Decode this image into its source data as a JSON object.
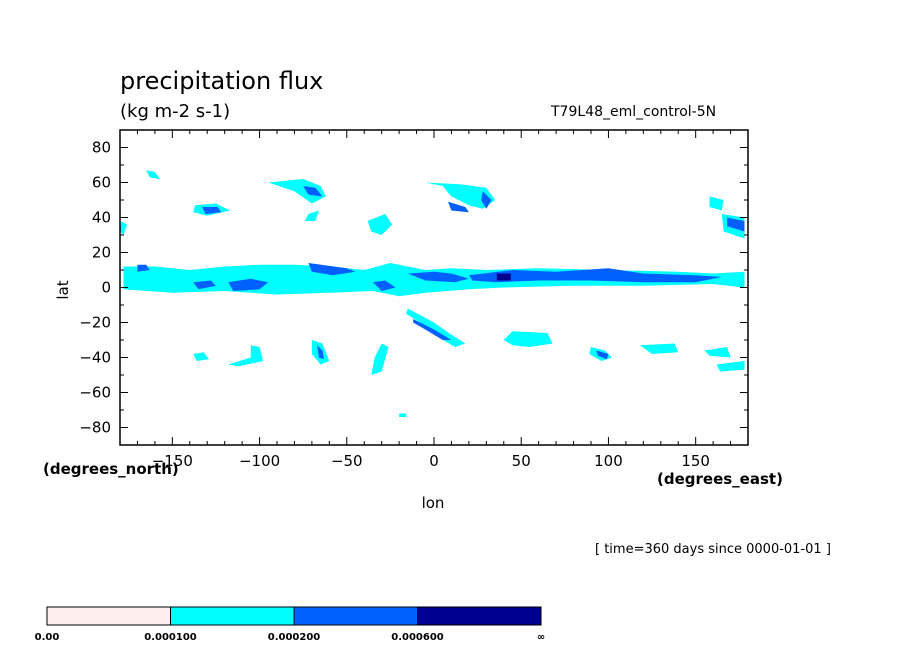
{
  "title": "precipitation flux",
  "units": "(kg m-2 s-1)",
  "run_id": "T79L48_eml_control-5N",
  "time_label": "[ time=360 days since 0000-01-01 ]",
  "chart_data": {
    "type": "contour-fill map",
    "x": {
      "label": "lon",
      "unit_label": "(degrees_east)",
      "range": [
        -180,
        180
      ],
      "ticks": [
        -150,
        -100,
        -50,
        0,
        50,
        100,
        150
      ],
      "tick_labels": [
        "−150",
        "−100",
        "−50",
        "0",
        "50",
        "100",
        "150"
      ]
    },
    "y": {
      "label": "lat",
      "unit_label": "(degrees_north)",
      "range": [
        -90,
        90
      ],
      "ticks": [
        -80,
        -60,
        -40,
        -20,
        0,
        20,
        40,
        60,
        80
      ],
      "tick_labels": [
        "−80",
        "−60",
        "−40",
        "−20",
        "0",
        "20",
        "40",
        "60",
        "80"
      ]
    },
    "levels": {
      "boundaries": [
        "0.00",
        "0.000100",
        "0.000200",
        "0.000600",
        "∞"
      ],
      "colors": [
        "#fff0ee",
        "#00ffff",
        "#0060ff",
        "#000090"
      ]
    },
    "regions": [
      {
        "level": 1,
        "pts": [
          [
            -178,
            12
          ],
          [
            -160,
            12
          ],
          [
            -140,
            10
          ],
          [
            -120,
            12
          ],
          [
            -100,
            13
          ],
          [
            -80,
            13
          ],
          [
            -60,
            12
          ],
          [
            -40,
            10
          ],
          [
            -25,
            14
          ],
          [
            -5,
            10
          ],
          [
            10,
            11
          ],
          [
            30,
            10
          ],
          [
            60,
            11
          ],
          [
            100,
            10
          ],
          [
            140,
            9
          ],
          [
            160,
            8
          ],
          [
            178,
            9
          ],
          [
            178,
            0
          ],
          [
            160,
            2
          ],
          [
            120,
            1
          ],
          [
            80,
            1
          ],
          [
            40,
            0
          ],
          [
            20,
            -1
          ],
          [
            -5,
            -3
          ],
          [
            -20,
            -5
          ],
          [
            -35,
            -2
          ],
          [
            -60,
            -3
          ],
          [
            -90,
            -4
          ],
          [
            -120,
            -2
          ],
          [
            -150,
            -3
          ],
          [
            -178,
            -1
          ]
        ]
      },
      {
        "level": 2,
        "pts": [
          [
            -170,
            13
          ],
          [
            -165,
            13
          ],
          [
            -163,
            10
          ],
          [
            -170,
            9
          ]
        ]
      },
      {
        "level": 2,
        "pts": [
          [
            -118,
            3
          ],
          [
            -105,
            5
          ],
          [
            -95,
            3
          ],
          [
            -100,
            -1
          ],
          [
            -115,
            -2
          ]
        ]
      },
      {
        "level": 2,
        "pts": [
          [
            -138,
            3
          ],
          [
            -128,
            4
          ],
          [
            -125,
            1
          ],
          [
            -135,
            -1
          ]
        ]
      },
      {
        "level": 2,
        "pts": [
          [
            -72,
            14
          ],
          [
            -50,
            11
          ],
          [
            -45,
            9
          ],
          [
            -58,
            7
          ],
          [
            -70,
            9
          ]
        ]
      },
      {
        "level": 2,
        "pts": [
          [
            -35,
            3
          ],
          [
            -28,
            4
          ],
          [
            -22,
            0
          ],
          [
            -30,
            -2
          ]
        ]
      },
      {
        "level": 2,
        "pts": [
          [
            -15,
            8
          ],
          [
            0,
            9
          ],
          [
            10,
            8
          ],
          [
            20,
            5
          ],
          [
            12,
            3
          ],
          [
            -5,
            4
          ]
        ]
      },
      {
        "level": 2,
        "pts": [
          [
            20,
            7
          ],
          [
            45,
            10
          ],
          [
            70,
            9
          ],
          [
            100,
            11
          ],
          [
            120,
            8
          ],
          [
            150,
            7
          ],
          [
            165,
            6
          ],
          [
            150,
            3
          ],
          [
            120,
            3
          ],
          [
            90,
            4
          ],
          [
            60,
            4
          ],
          [
            35,
            3
          ],
          [
            22,
            4
          ]
        ]
      },
      {
        "level": 3,
        "pts": [
          [
            36,
            8
          ],
          [
            44,
            8
          ],
          [
            44,
            4
          ],
          [
            36,
            4
          ]
        ]
      },
      {
        "level": 1,
        "pts": [
          [
            -165,
            67
          ],
          [
            -160,
            66
          ],
          [
            -157,
            62
          ],
          [
            -163,
            63
          ]
        ]
      },
      {
        "level": 1,
        "pts": [
          [
            -95,
            60
          ],
          [
            -75,
            62
          ],
          [
            -65,
            58
          ],
          [
            -62,
            52
          ],
          [
            -70,
            48
          ],
          [
            -80,
            55
          ]
        ]
      },
      {
        "level": 2,
        "pts": [
          [
            -75,
            58
          ],
          [
            -68,
            57
          ],
          [
            -64,
            52
          ],
          [
            -72,
            53
          ]
        ]
      },
      {
        "level": 1,
        "pts": [
          [
            -137,
            47
          ],
          [
            -125,
            48
          ],
          [
            -117,
            44
          ],
          [
            -130,
            41
          ],
          [
            -138,
            43
          ]
        ]
      },
      {
        "level": 2,
        "pts": [
          [
            -133,
            46
          ],
          [
            -124,
            46
          ],
          [
            -122,
            43
          ],
          [
            -131,
            42
          ]
        ]
      },
      {
        "level": 1,
        "pts": [
          [
            -72,
            42
          ],
          [
            -66,
            44
          ],
          [
            -68,
            38
          ],
          [
            -74,
            38
          ]
        ]
      },
      {
        "level": 1,
        "pts": [
          [
            -38,
            38
          ],
          [
            -28,
            42
          ],
          [
            -24,
            36
          ],
          [
            -30,
            30
          ],
          [
            -36,
            32
          ]
        ]
      },
      {
        "level": 1,
        "pts": [
          [
            -5,
            60
          ],
          [
            15,
            59
          ],
          [
            30,
            57
          ],
          [
            35,
            50
          ],
          [
            28,
            45
          ],
          [
            20,
            47
          ],
          [
            10,
            52
          ],
          [
            5,
            58
          ]
        ]
      },
      {
        "level": 2,
        "pts": [
          [
            8,
            49
          ],
          [
            18,
            46
          ],
          [
            20,
            43
          ],
          [
            10,
            44
          ]
        ]
      },
      {
        "level": 2,
        "pts": [
          [
            28,
            55
          ],
          [
            33,
            50
          ],
          [
            30,
            45
          ],
          [
            27,
            50
          ]
        ]
      },
      {
        "level": 1,
        "pts": [
          [
            158,
            52
          ],
          [
            166,
            50
          ],
          [
            165,
            44
          ],
          [
            158,
            46
          ]
        ]
      },
      {
        "level": 1,
        "pts": [
          [
            165,
            42
          ],
          [
            178,
            40
          ],
          [
            178,
            28
          ],
          [
            166,
            32
          ]
        ]
      },
      {
        "level": 2,
        "pts": [
          [
            168,
            40
          ],
          [
            178,
            38
          ],
          [
            178,
            32
          ],
          [
            168,
            35
          ]
        ]
      },
      {
        "level": 1,
        "pts": [
          [
            -180,
            38
          ],
          [
            -176,
            36
          ],
          [
            -178,
            30
          ],
          [
            -180,
            32
          ]
        ]
      },
      {
        "level": 1,
        "pts": [
          [
            -15,
            -12
          ],
          [
            0,
            -20
          ],
          [
            10,
            -27
          ],
          [
            18,
            -32
          ],
          [
            12,
            -34
          ],
          [
            2,
            -28
          ],
          [
            -8,
            -20
          ],
          [
            -16,
            -15
          ]
        ]
      },
      {
        "level": 2,
        "pts": [
          [
            -12,
            -18
          ],
          [
            0,
            -24
          ],
          [
            10,
            -30
          ],
          [
            5,
            -30
          ],
          [
            -5,
            -24
          ],
          [
            -12,
            -20
          ]
        ]
      },
      {
        "level": 1,
        "pts": [
          [
            45,
            -25
          ],
          [
            65,
            -26
          ],
          [
            68,
            -32
          ],
          [
            55,
            -34
          ],
          [
            45,
            -33
          ],
          [
            40,
            -30
          ]
        ]
      },
      {
        "level": 1,
        "pts": [
          [
            -138,
            -38
          ],
          [
            -132,
            -37
          ],
          [
            -129,
            -41
          ],
          [
            -136,
            -42
          ]
        ]
      },
      {
        "level": 1,
        "pts": [
          [
            -105,
            -33
          ],
          [
            -100,
            -34
          ],
          [
            -98,
            -42
          ],
          [
            -112,
            -45
          ],
          [
            -118,
            -44
          ],
          [
            -105,
            -40
          ]
        ]
      },
      {
        "level": 1,
        "pts": [
          [
            -70,
            -30
          ],
          [
            -64,
            -32
          ],
          [
            -60,
            -42
          ],
          [
            -65,
            -44
          ],
          [
            -70,
            -38
          ]
        ]
      },
      {
        "level": 2,
        "pts": [
          [
            -67,
            -33
          ],
          [
            -64,
            -36
          ],
          [
            -63,
            -41
          ],
          [
            -66,
            -40
          ]
        ]
      },
      {
        "level": 1,
        "pts": [
          [
            -30,
            -32
          ],
          [
            -26,
            -34
          ],
          [
            -30,
            -48
          ],
          [
            -36,
            -50
          ],
          [
            -34,
            -40
          ]
        ]
      },
      {
        "level": 1,
        "pts": [
          [
            90,
            -34
          ],
          [
            98,
            -36
          ],
          [
            102,
            -40
          ],
          [
            96,
            -42
          ],
          [
            89,
            -38
          ]
        ]
      },
      {
        "level": 2,
        "pts": [
          [
            93,
            -36
          ],
          [
            100,
            -38
          ],
          [
            99,
            -41
          ],
          [
            94,
            -39
          ]
        ]
      },
      {
        "level": 1,
        "pts": [
          [
            118,
            -33
          ],
          [
            138,
            -32
          ],
          [
            140,
            -37
          ],
          [
            125,
            -38
          ]
        ]
      },
      {
        "level": 1,
        "pts": [
          [
            155,
            -36
          ],
          [
            168,
            -34
          ],
          [
            170,
            -40
          ],
          [
            158,
            -39
          ]
        ]
      },
      {
        "level": 1,
        "pts": [
          [
            162,
            -44
          ],
          [
            178,
            -42
          ],
          [
            178,
            -47
          ],
          [
            164,
            -48
          ]
        ]
      },
      {
        "level": 1,
        "pts": [
          [
            -20,
            -72
          ],
          [
            -16,
            -72
          ],
          [
            -16,
            -74
          ],
          [
            -20,
            -74
          ]
        ]
      }
    ]
  }
}
